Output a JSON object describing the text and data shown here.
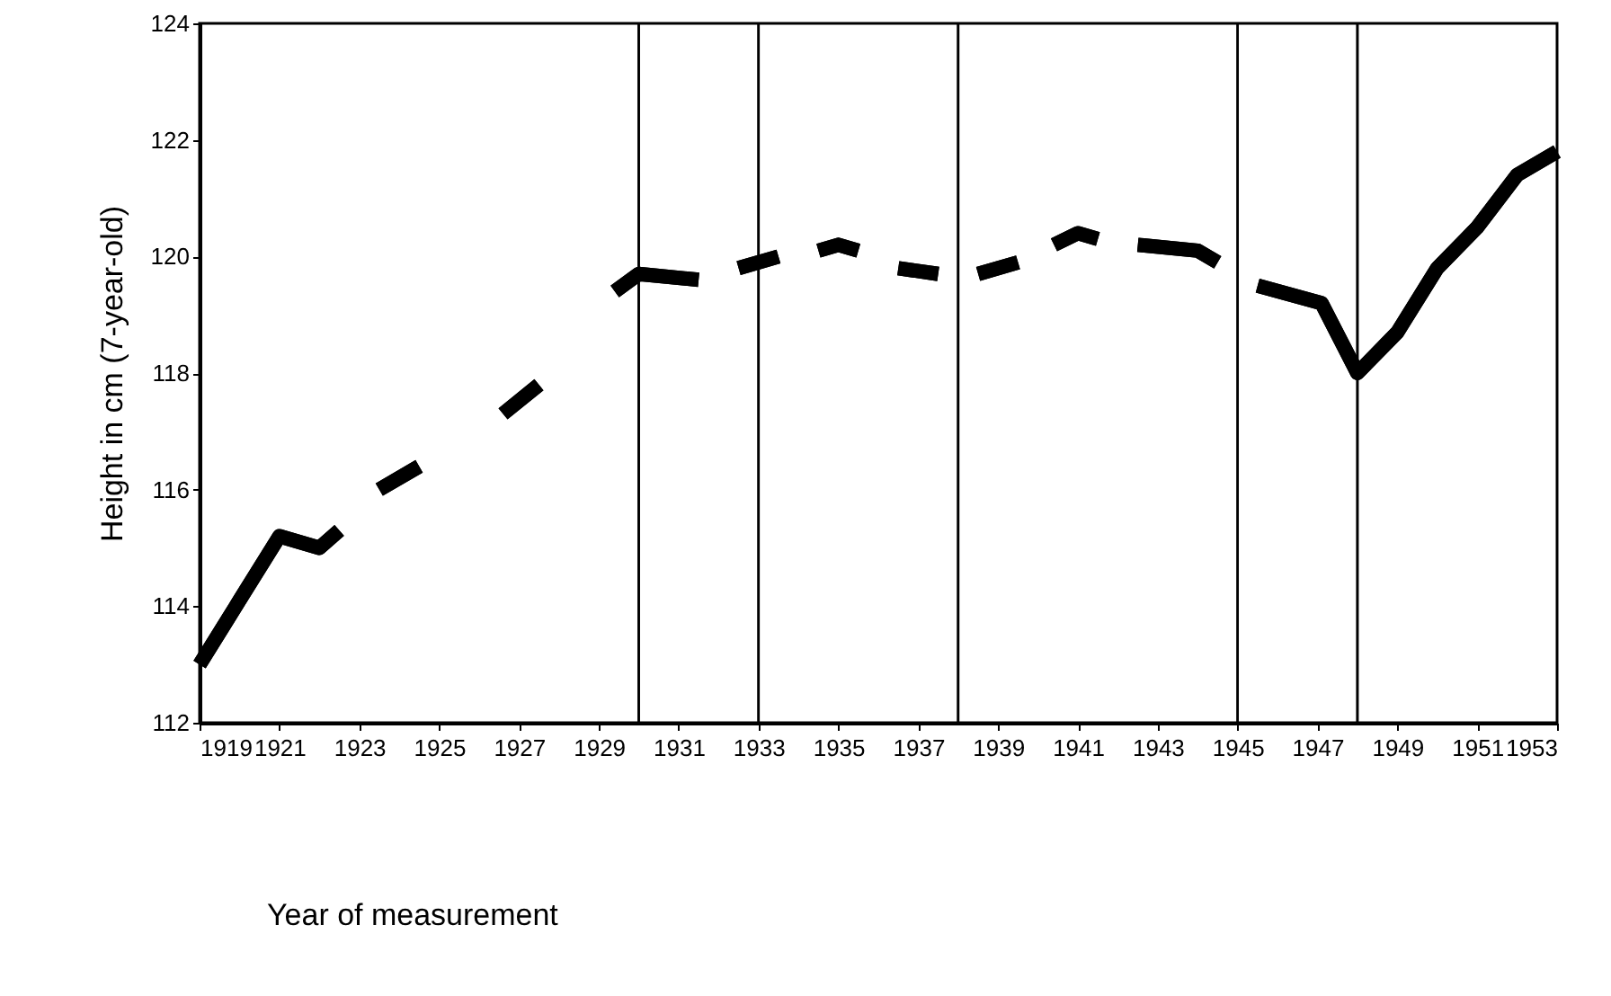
{
  "chart_data": {
    "type": "line",
    "xlabel": "Year of measurement",
    "ylabel": "Height in cm (7-year-old)",
    "x": [
      1919,
      1920,
      1921,
      1922,
      1922.5,
      1923,
      1923.5,
      1924.5,
      1925,
      1926.6,
      1927.5,
      1928,
      1929.4,
      1930,
      1931.5,
      1932,
      1932.5,
      1933.5,
      1934,
      1934.5,
      1935,
      1935.5,
      1936,
      1936.5,
      1937.5,
      1938,
      1938.5,
      1939.5,
      1940,
      1940.4,
      1941,
      1941.5,
      1942,
      1942.5,
      1944,
      1944.5,
      1945,
      1945.5,
      1947.1,
      1948,
      1949,
      1950,
      1951,
      1952,
      1953
    ],
    "series": [
      {
        "color": "#000000",
        "values": [
          113.0,
          114.1,
          115.2,
          115.0,
          115.3,
          null,
          116.0,
          116.4,
          null,
          117.3,
          117.8,
          null,
          119.4,
          119.7,
          119.6,
          null,
          119.8,
          120.0,
          null,
          120.1,
          120.2,
          120.1,
          null,
          119.8,
          119.7,
          null,
          119.7,
          119.9,
          null,
          120.2,
          120.4,
          120.3,
          null,
          120.2,
          120.1,
          119.9,
          null,
          119.5,
          119.2,
          118.0,
          118.7,
          119.8,
          120.5,
          121.4,
          121.8
        ]
      }
    ],
    "xlim": [
      1919,
      1953
    ],
    "xticks": [
      1919,
      1921,
      1923,
      1925,
      1927,
      1929,
      1931,
      1933,
      1935,
      1937,
      1939,
      1941,
      1943,
      1945,
      1947,
      1949,
      1951,
      1953
    ],
    "ylim": [
      112,
      124
    ],
    "yticks": [
      112,
      114,
      116,
      118,
      120,
      122,
      124
    ],
    "ref_lines": [
      {
        "axis": "x",
        "value": 1930,
        "color": "#000000"
      },
      {
        "axis": "x",
        "value": 1933,
        "color": "#000000"
      },
      {
        "axis": "x",
        "value": 1938,
        "color": "#000000"
      },
      {
        "axis": "x",
        "value": 1945,
        "color": "#000000"
      },
      {
        "axis": "x",
        "value": 1948,
        "color": "#000000"
      }
    ],
    "grid": false,
    "marker": "none",
    "line_style": "solid"
  }
}
